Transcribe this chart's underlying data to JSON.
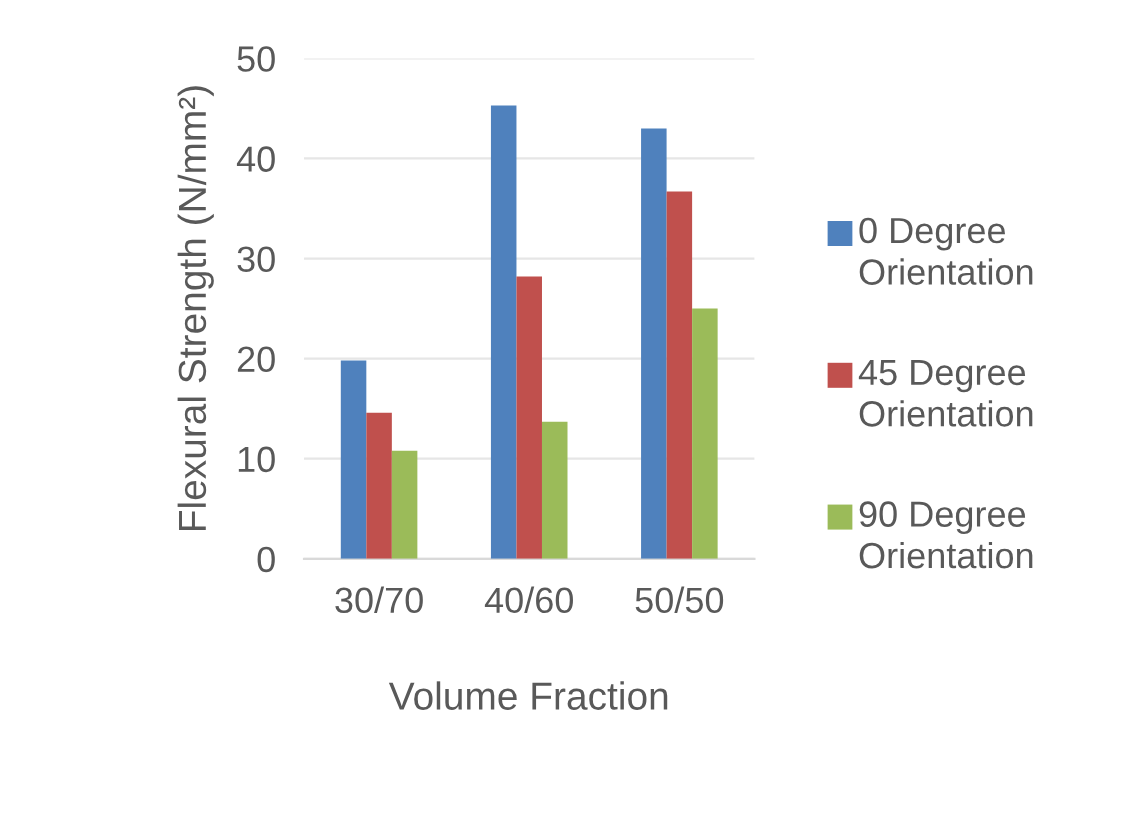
{
  "chart_data": {
    "type": "bar",
    "xlabel": "Volume Fraction",
    "ylabel": "Flexural Strength (N/mm²)",
    "categories": [
      "30/70",
      "40/60",
      "50/50"
    ],
    "series": [
      {
        "name": "0 Degree Orientation",
        "color": "#4f81bd",
        "values": [
          19.8,
          45.3,
          43.0
        ]
      },
      {
        "name": "45 Degree Orientation",
        "color": "#c0504d",
        "values": [
          14.6,
          28.2,
          36.7
        ]
      },
      {
        "name": "90 Degree Orientation",
        "color": "#9bbb59",
        "values": [
          10.8,
          13.7,
          25.0
        ]
      }
    ],
    "ylim": [
      0,
      50
    ],
    "yticks": [
      0,
      10,
      20,
      30,
      40,
      50
    ],
    "grid": "y",
    "legend": "right"
  }
}
